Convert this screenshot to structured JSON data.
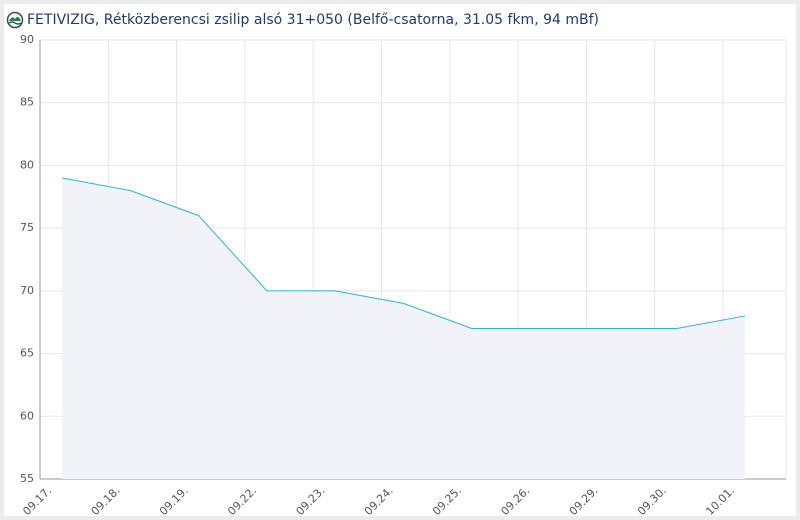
{
  "chart_data": {
    "type": "area",
    "title": "FETIVIZIG, Rétközberencsi zsilip alsó 31+050 (Belfő-csatorna, 31.05 fkm, 94 mBf)",
    "categories": [
      "09.17.",
      "09.18.",
      "09.19.",
      "09.22.",
      "09.23.",
      "09.24.",
      "09.25.",
      "09.26.",
      "09.29.",
      "09.30.",
      "10.01."
    ],
    "series": [
      {
        "color": "#2ab4d6",
        "values": [
          79,
          78,
          76,
          70,
          70,
          69,
          67,
          67,
          67,
          67,
          68
        ]
      }
    ],
    "ylim": [
      55,
      90
    ],
    "yticks": [
      55,
      60,
      65,
      70,
      75,
      80,
      85,
      90
    ],
    "grid": true
  }
}
